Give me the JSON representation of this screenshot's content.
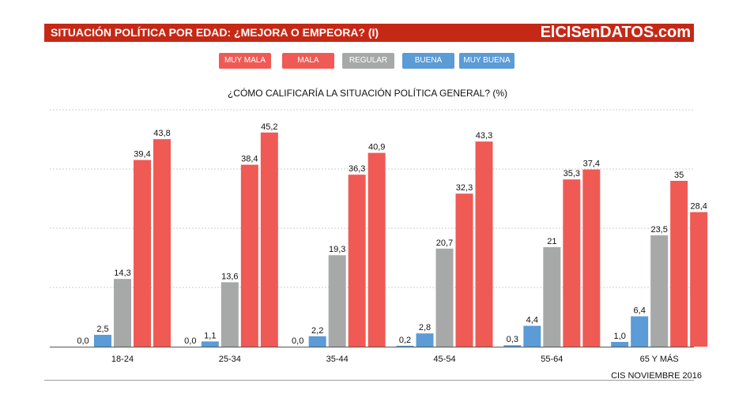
{
  "header": {
    "title": "SITUACIÓN POLÍTICA POR EDAD: ¿MEJORA O EMPEORA? (I)",
    "brand": "ElCISenDATOS.com"
  },
  "legend": [
    {
      "label": "MUY MALA",
      "color": "#ef5a55"
    },
    {
      "label": "MALA",
      "color": "#ef5a55"
    },
    {
      "label": "REGULAR",
      "color": "#a7a9a8"
    },
    {
      "label": "BUENA",
      "color": "#5b9bd6"
    },
    {
      "label": "MUY BUENA",
      "color": "#5b9bd6"
    }
  ],
  "source": "CIS NOVIEMBRE 2016",
  "chart_data": {
    "type": "bar",
    "title": "¿CÓMO CALIFICARÍA  LA SITUACIÓN POLÍTICA GENERAL? (%)",
    "categories": [
      "18-24",
      "25-34",
      "35-44",
      "45-54",
      "55-64",
      "65 Y MÁS"
    ],
    "series": [
      {
        "name": "MUY BUENA",
        "color": "#5b9bd6",
        "values": [
          0.0,
          0.0,
          0.0,
          0.2,
          0.3,
          1.0
        ],
        "labels": [
          "0,0",
          "0,0",
          "0,0",
          "0,2",
          "0,3",
          "1,0"
        ]
      },
      {
        "name": "BUENA",
        "color": "#5b9bd6",
        "values": [
          2.5,
          1.1,
          2.2,
          2.8,
          4.4,
          6.4
        ],
        "labels": [
          "2,5",
          "1,1",
          "2,2",
          "2,8",
          "4,4",
          "6,4"
        ]
      },
      {
        "name": "REGULAR",
        "color": "#a7a9a8",
        "values": [
          14.3,
          13.6,
          19.3,
          20.7,
          21,
          23.5
        ],
        "labels": [
          "14,3",
          "13,6",
          "19,3",
          "20,7",
          "21",
          "23,5"
        ]
      },
      {
        "name": "MALA",
        "color": "#ef5a55",
        "values": [
          39.4,
          38.4,
          36.3,
          32.3,
          35.3,
          35
        ],
        "labels": [
          "39,4",
          "38,4",
          "36,3",
          "32,3",
          "35,3",
          "35"
        ]
      },
      {
        "name": "MUY MALA",
        "color": "#ef5a55",
        "values": [
          43.8,
          45.2,
          40.9,
          43.3,
          37.4,
          28.4
        ],
        "labels": [
          "43,8",
          "45,2",
          "40,9",
          "43,3",
          "37,4",
          "28,4"
        ]
      }
    ],
    "ylim": [
      0,
      50
    ],
    "grid": true,
    "gridlines": [
      12.5,
      25,
      37.5,
      50
    ],
    "legend_position": "top"
  }
}
